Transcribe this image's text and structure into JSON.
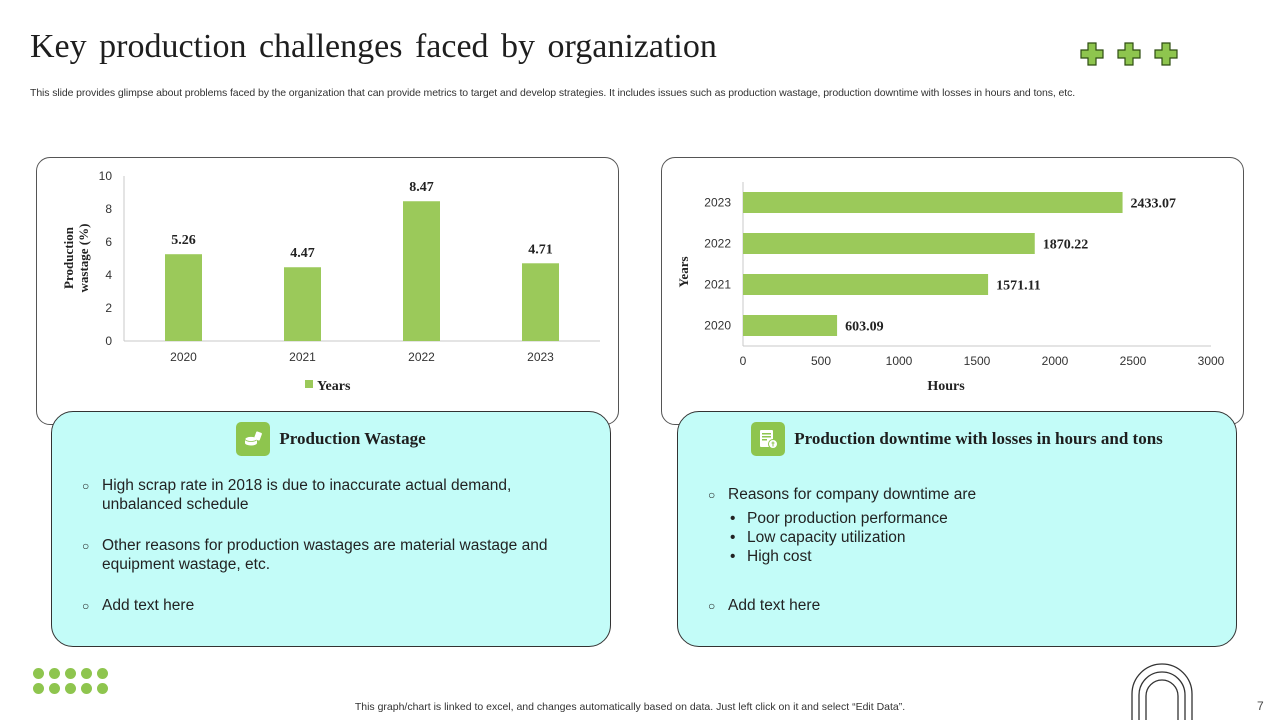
{
  "slide": {
    "title": "Key production challenges faced by organization",
    "subtitle": "This slide provides glimpse about problems faced by the organization that can provide metrics to target and develop strategies. It includes issues such as production wastage, production downtime with losses in hours and tons, etc.",
    "footer_note": "This graph/chart is linked to excel,  and changes automatically based on data. Just left click on it and select “Edit Data”.",
    "page_number": "7",
    "accent_color": "#8ec54e",
    "card_bg_color": "#c3fcf8"
  },
  "chart_data": [
    {
      "type": "bar",
      "categories": [
        "2020",
        "2021",
        "2022",
        "2023"
      ],
      "values": [
        5.26,
        4.47,
        8.47,
        4.71
      ],
      "value_labels": [
        "5.26",
        "4.47",
        "8.47",
        "4.71"
      ],
      "title": "",
      "xlabel": "Years",
      "ylabel": "Production wastage (%)",
      "ylabel_lines": [
        "Production",
        "wastage (%)"
      ],
      "ylim": [
        0,
        10
      ],
      "yticks": [
        "0",
        "2",
        "4",
        "6",
        "8",
        "10"
      ],
      "legend": "Years",
      "grid": false,
      "color": "#9bc95a"
    },
    {
      "type": "bar",
      "orientation": "horizontal",
      "categories": [
        "2023",
        "2022",
        "2021",
        "2020"
      ],
      "values": [
        2433.07,
        1870.22,
        1571.11,
        603.09
      ],
      "value_labels": [
        "2433.07",
        "1870.22",
        "1571.11",
        "603.09"
      ],
      "title": "",
      "xlabel": "Hours",
      "ylabel": "Years",
      "xlim": [
        0,
        3000
      ],
      "xticks": [
        "0",
        "500",
        "1000",
        "1500",
        "2000",
        "2500",
        "3000"
      ],
      "grid": false,
      "color": "#9bc95a"
    }
  ],
  "wastage_card": {
    "title": "Production Wastage",
    "icon": "coins-icon",
    "bullets": [
      "High scrap rate in 2018 is due to inaccurate actual demand, unbalanced schedule",
      "Other reasons for production wastages are material wastage and equipment wastage, etc.",
      "Add text here"
    ]
  },
  "downtime_card": {
    "title": "Production downtime with losses in hours and tons",
    "icon": "report-icon",
    "intro": "Reasons for company downtime are",
    "reasons": [
      "Poor production performance",
      "Low capacity utilization",
      "High cost"
    ],
    "last": "Add text here"
  }
}
